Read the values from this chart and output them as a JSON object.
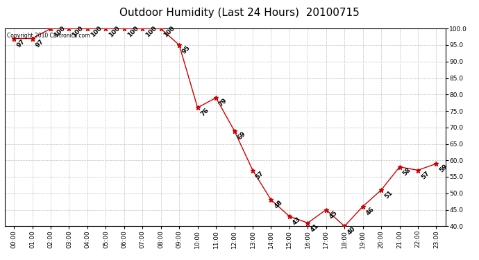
{
  "title": "Outdoor Humidity (Last 24 Hours)  20100715",
  "copyright_text": "Copyright 2010 Cartronics.com",
  "x_labels": [
    "00:00",
    "01:00",
    "02:00",
    "03:00",
    "04:00",
    "05:00",
    "06:00",
    "07:00",
    "08:00",
    "09:00",
    "10:00",
    "11:00",
    "12:00",
    "13:00",
    "14:00",
    "15:00",
    "16:00",
    "17:00",
    "18:00",
    "19:00",
    "20:00",
    "21:00",
    "22:00",
    "23:00"
  ],
  "x_values": [
    0,
    1,
    2,
    3,
    4,
    5,
    6,
    7,
    8,
    9,
    10,
    11,
    12,
    13,
    14,
    15,
    16,
    17,
    18,
    19,
    20,
    21,
    22,
    23
  ],
  "y_values": [
    97,
    97,
    100,
    100,
    100,
    100,
    100,
    100,
    100,
    95,
    76,
    79,
    69,
    57,
    48,
    43,
    41,
    45,
    40,
    46,
    51,
    58,
    57,
    59
  ],
  "ylim_min": 40.0,
  "ylim_max": 100.0,
  "yticks": [
    40.0,
    45.0,
    50.0,
    55.0,
    60.0,
    65.0,
    70.0,
    75.0,
    80.0,
    85.0,
    90.0,
    95.0,
    100.0
  ],
  "line_color": "#cc0000",
  "marker_color": "#cc0000",
  "marker_style": "*",
  "marker_size": 5,
  "bg_color": "#ffffff",
  "grid_color": "#bbbbbb",
  "title_fontsize": 11,
  "annotation_fontsize": 6.5,
  "tick_fontsize": 6.5,
  "copyright_fontsize": 5.5
}
